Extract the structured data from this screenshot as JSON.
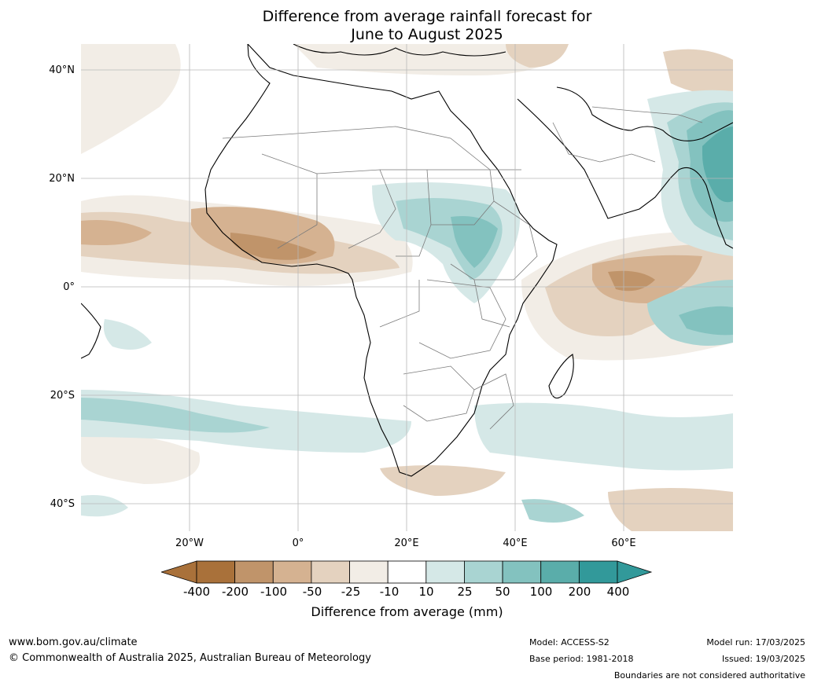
{
  "title_line1": "Difference from average rainfall forecast for",
  "title_line2": "June to August 2025",
  "lat_labels": [
    "40°N",
    "20°N",
    "0°",
    "20°S",
    "40°S"
  ],
  "lon_labels": [
    "20°W",
    "0°",
    "20°E",
    "40°E",
    "60°E"
  ],
  "colorbar": {
    "ticks": [
      "-400",
      "-200",
      "-100",
      "-50",
      "-25",
      "-10",
      "10",
      "25",
      "50",
      "100",
      "200",
      "400"
    ],
    "colors": [
      "#a9713a",
      "#c0946a",
      "#d5b291",
      "#e4d2bf",
      "#f2ede6",
      "#ffffff",
      "#d5e8e7",
      "#a9d4d2",
      "#83c2bf",
      "#5aadaa",
      "#32999a"
    ],
    "label": "Difference from average (mm)"
  },
  "footer": {
    "website": "www.bom.gov.au/climate",
    "copyright": "© Commonwealth of Australia 2025, Australian Bureau of Meteorology",
    "model": "Model: ACCESS-S2",
    "base_period": "Base period: 1981-2018",
    "model_run": "Model run: 17/03/2025",
    "issued": "Issued: 19/03/2025",
    "disclaimer": "Boundaries are not considered authoritative"
  }
}
